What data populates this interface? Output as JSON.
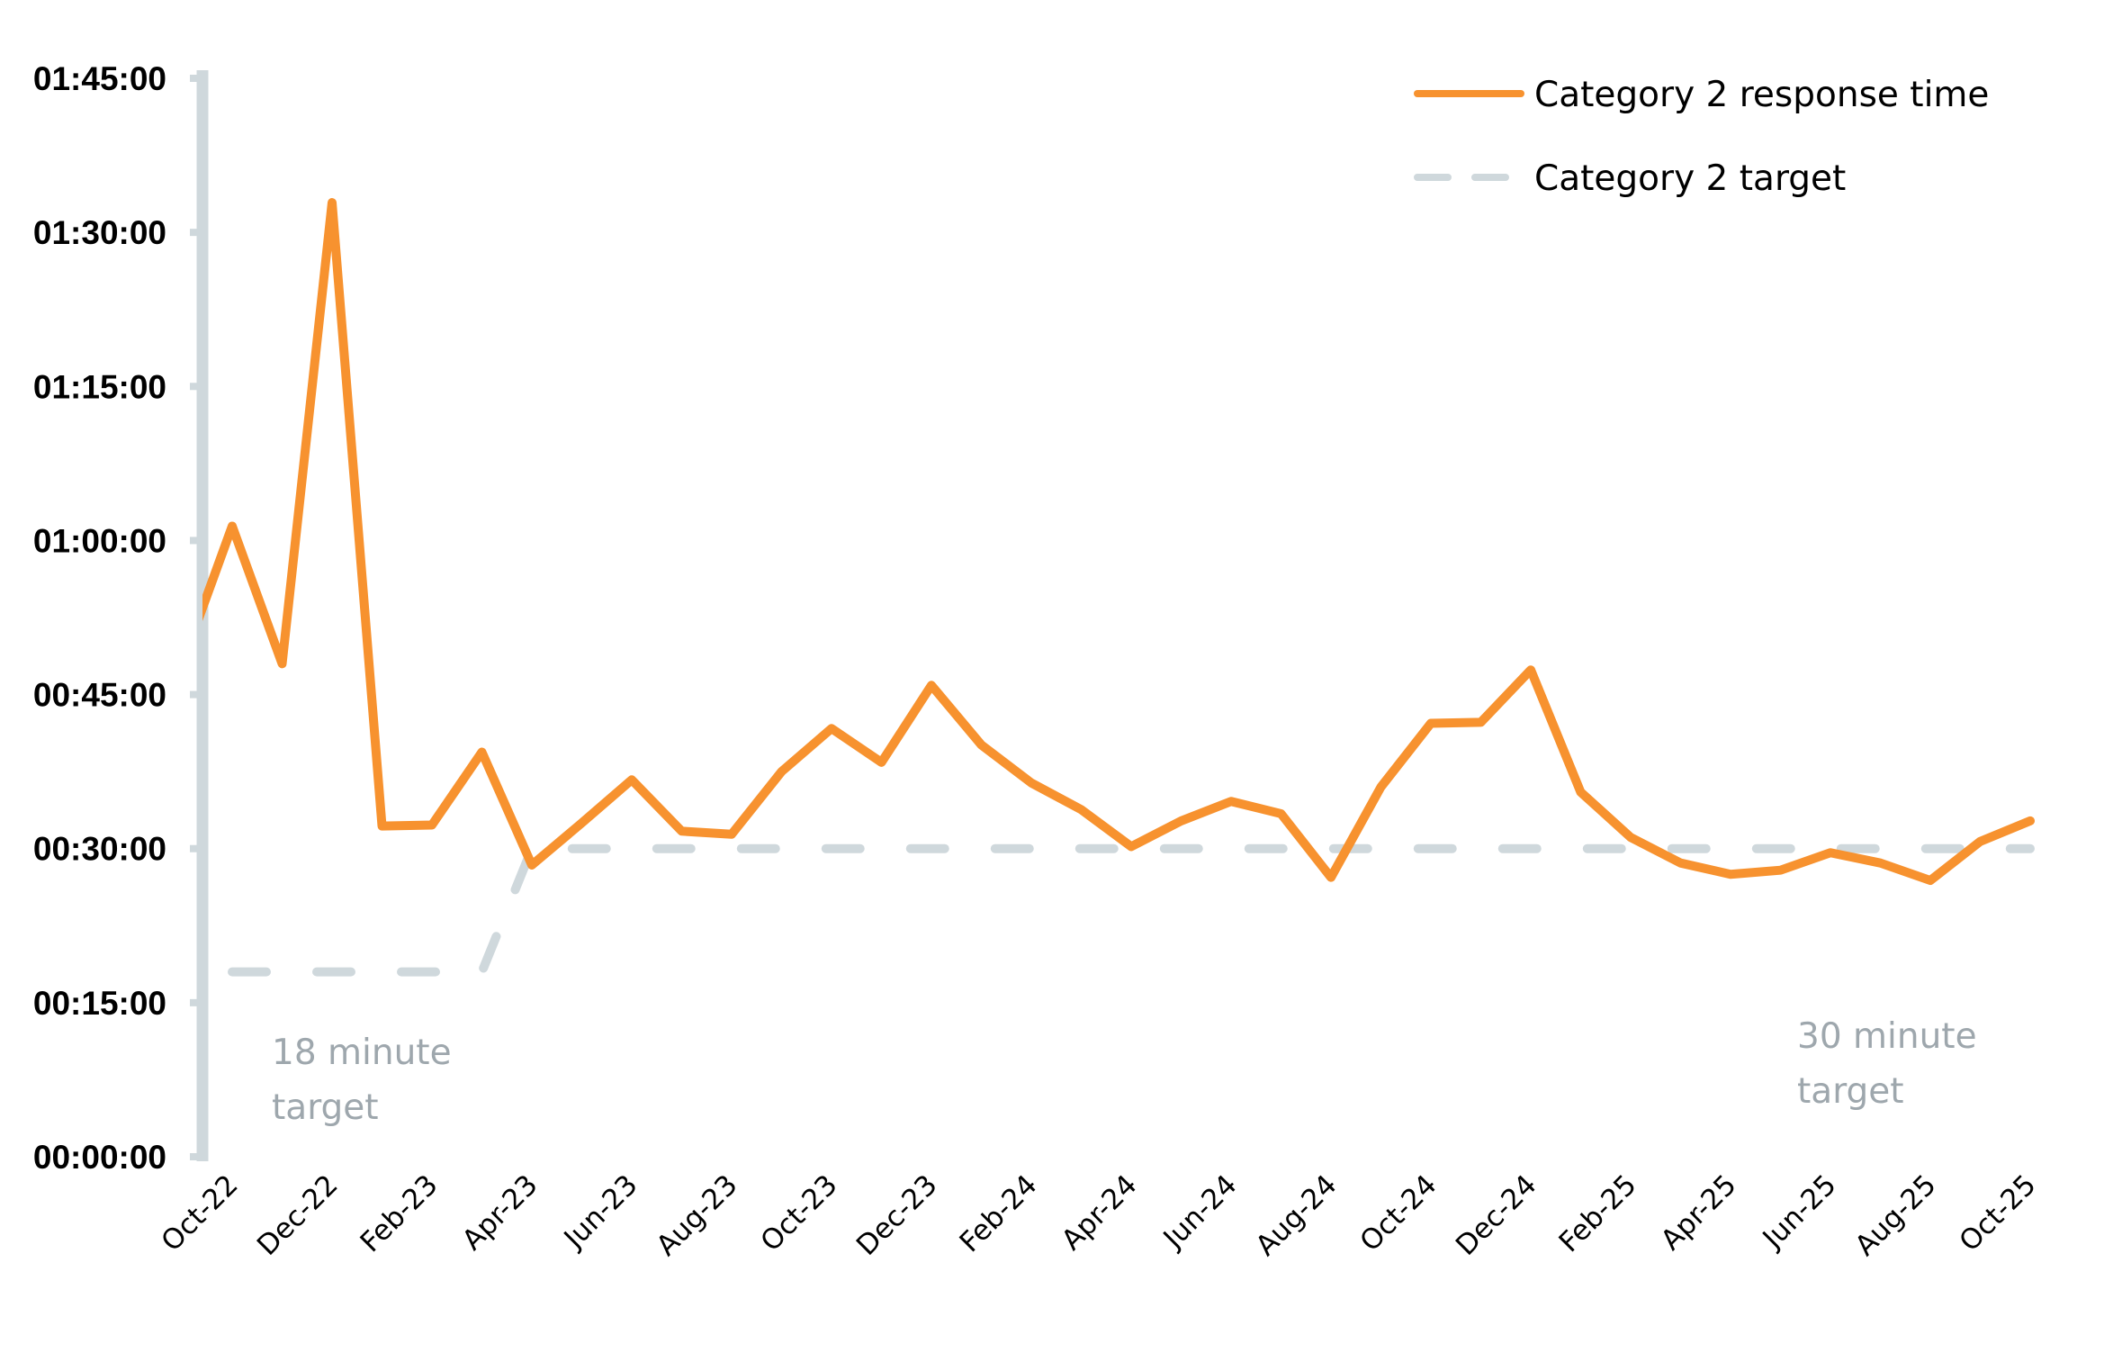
{
  "chart_data": {
    "type": "line",
    "title": "",
    "xlabel": "",
    "ylabel": "",
    "ylim_minutes": [
      0,
      105
    ],
    "y_ticks": [
      {
        "minutes": 0,
        "label": "00:00:00"
      },
      {
        "minutes": 15,
        "label": "00:15:00"
      },
      {
        "minutes": 30,
        "label": "00:30:00"
      },
      {
        "minutes": 45,
        "label": "00:45:00"
      },
      {
        "minutes": 60,
        "label": "01:00:00"
      },
      {
        "minutes": 75,
        "label": "01:15:00"
      },
      {
        "minutes": 90,
        "label": "01:30:00"
      },
      {
        "minutes": 105,
        "label": "01:45:00"
      }
    ],
    "x": [
      "Sep-22",
      "Oct-22",
      "Nov-22",
      "Dec-22",
      "Jan-23",
      "Feb-23",
      "Mar-23",
      "Apr-23",
      "May-23",
      "Jun-23",
      "Jul-23",
      "Aug-23",
      "Sep-23",
      "Oct-23",
      "Nov-23",
      "Dec-23",
      "Jan-24",
      "Feb-24",
      "Mar-24",
      "Apr-24",
      "May-24",
      "Jun-24",
      "Jul-24",
      "Aug-24",
      "Sep-24",
      "Oct-24",
      "Nov-24",
      "Dec-24",
      "Jan-25",
      "Feb-25",
      "Mar-25",
      "Apr-25",
      "May-25",
      "Jun-25",
      "Jul-25",
      "Aug-25",
      "Sep-25",
      "Oct-25"
    ],
    "x_tick_labels": [
      "Oct-22",
      "Dec-22",
      "Feb-23",
      "Apr-23",
      "Jun-23",
      "Aug-23",
      "Oct-23",
      "Dec-23",
      "Feb-24",
      "Apr-24",
      "Jun-24",
      "Aug-24",
      "Oct-24",
      "Dec-24",
      "Feb-25",
      "Apr-25",
      "Jun-25",
      "Aug-25",
      "Oct-25"
    ],
    "series": [
      {
        "name": "Category 2 response time",
        "color": "#F7922F",
        "style": "solid",
        "values_minutes": [
          48.0,
          61.4,
          48.0,
          92.9,
          32.2,
          32.3,
          39.4,
          28.4,
          32.5,
          36.7,
          31.7,
          31.4,
          37.5,
          41.7,
          38.4,
          45.9,
          40.1,
          36.4,
          33.8,
          30.2,
          32.7,
          34.6,
          33.4,
          27.2,
          36.0,
          42.2,
          42.3,
          47.4,
          35.5,
          31.1,
          28.6,
          27.5,
          27.9,
          29.6,
          28.6,
          26.9,
          30.7,
          32.7
        ]
      },
      {
        "name": "Category 2 target",
        "color": "#CFD8DC",
        "style": "dashed",
        "values_minutes": [
          null,
          18,
          18,
          18,
          18,
          18,
          18,
          30,
          30,
          30,
          30,
          30,
          30,
          30,
          30,
          30,
          30,
          30,
          30,
          30,
          30,
          30,
          30,
          30,
          30,
          30,
          30,
          30,
          30,
          30,
          30,
          30,
          30,
          30,
          30,
          30,
          30,
          30
        ]
      }
    ],
    "legend_position": "top-right",
    "annotations": [
      {
        "text_line1": "18 minute",
        "text_line2": "target"
      },
      {
        "text_line1": "30 minute",
        "text_line2": "target"
      }
    ],
    "grid": false
  }
}
